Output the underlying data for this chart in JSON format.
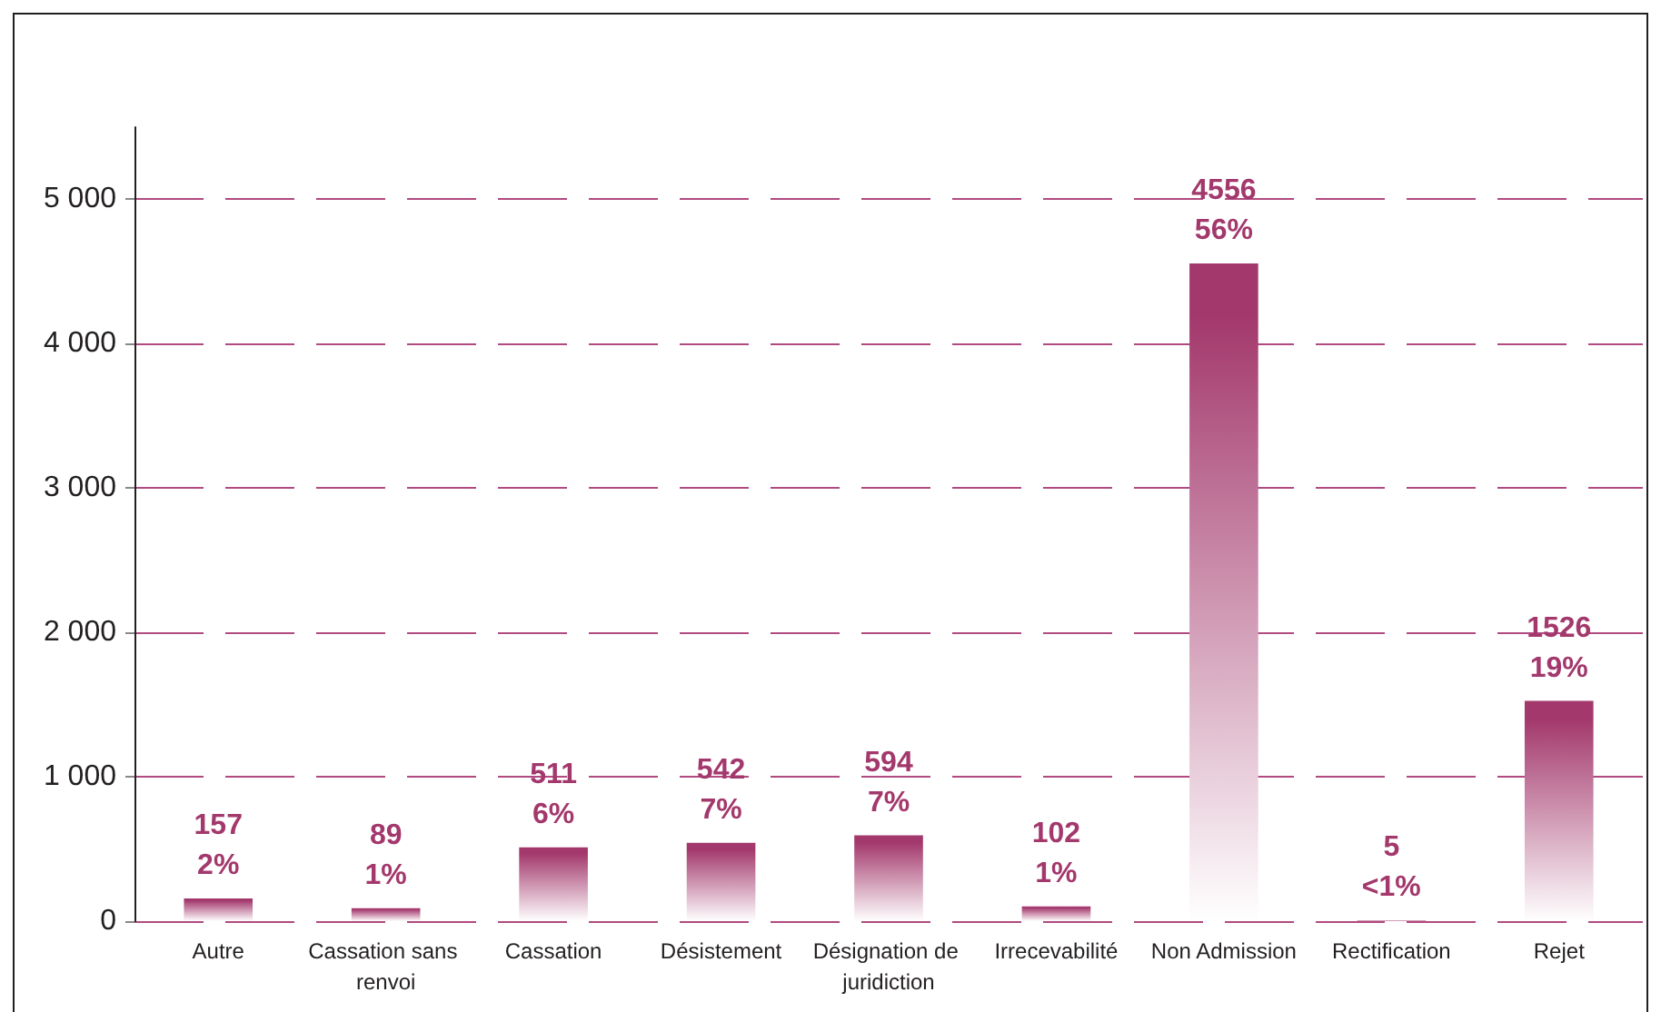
{
  "chart_data": {
    "type": "bar",
    "categories": [
      "Autre",
      "Cassation sans renvoi",
      "Cassation",
      "Désistement",
      "Désignation de juridiction",
      "Irrecevabilité",
      "Non Admission",
      "Rectification",
      "Rejet"
    ],
    "values": [
      157,
      89,
      511,
      542,
      594,
      102,
      4556,
      5,
      1526
    ],
    "value_labels": [
      "157\n2%",
      "89\n1%",
      "511\n6%",
      "542\n7%",
      "594\n7%",
      "102\n1%",
      "4556\n56%",
      "5\n<1%",
      "1526\n19%"
    ],
    "color": "#a3386c",
    "ylim": [
      0,
      5500
    ],
    "yticks": [
      0,
      {
        "value": 1000,
        "label": "1 000"
      },
      {
        "value": 2000,
        "label": "2 000"
      },
      {
        "value": 3000,
        "label": "3 000"
      },
      {
        "value": 4000,
        "label": "4 000"
      },
      {
        "value": 5000,
        "label": "5 000"
      }
    ],
    "grid": "y"
  }
}
